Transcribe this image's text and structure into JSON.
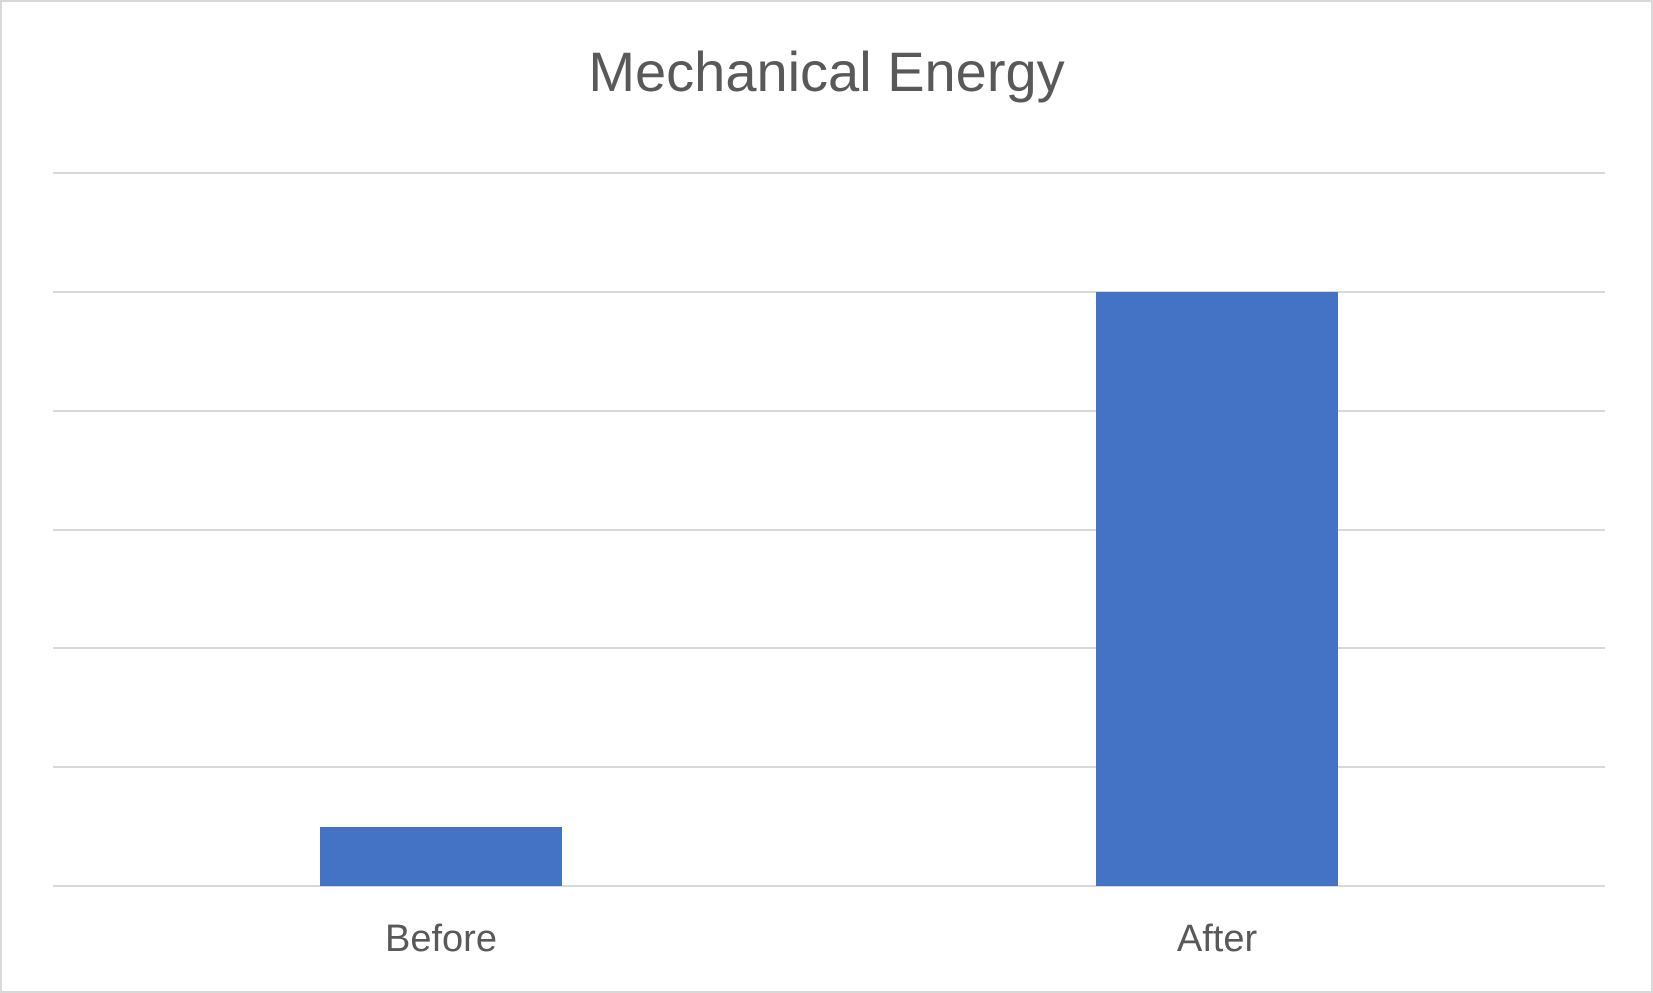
{
  "chart_data": {
    "type": "bar",
    "title": "Mechanical Energy",
    "categories": [
      "Before",
      "After"
    ],
    "values": [
      0.5,
      5
    ],
    "xlabel": "",
    "ylabel": "",
    "ylim": [
      0,
      6
    ],
    "gridline_step": 1,
    "grid": "horizontal-only",
    "legend": "none",
    "y_axis_tick_labels_visible": false,
    "colors": {
      "bar": "#4472C4",
      "gridline": "#D9D9D9",
      "axis_line": "#D9D9D9",
      "title_text": "#595959",
      "category_text": "#595959",
      "background": "#FFFFFF",
      "canvas_border": "#D9D9D9"
    }
  }
}
